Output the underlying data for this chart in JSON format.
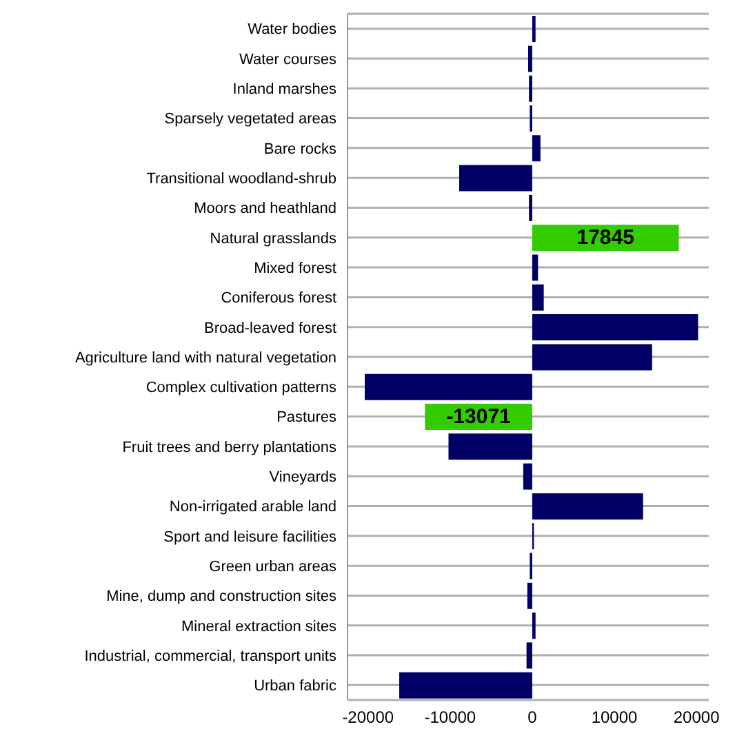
{
  "chart_data": {
    "type": "bar",
    "orientation": "horizontal",
    "categories": [
      "Water bodies",
      "Water courses",
      "Inland marshes",
      "Sparsely vegetated areas",
      "Bare rocks",
      "Transitional woodland-shrub",
      "Moors and heathland",
      "Natural grasslands",
      "Mixed forest",
      "Coniferous forest",
      "Broad-leaved forest",
      "Agriculture land with natural vegetation",
      "Complex cultivation patterns",
      "Pastures",
      "Fruit trees and berry plantations",
      "Vineyards",
      "Non-irrigated arable land",
      "Sport and leisure facilities",
      "Green urban areas",
      "Mine, dump and construction sites",
      "Mineral extraction sites",
      "Industrial, commercial, transport units",
      "Urban fabric"
    ],
    "values": [
      400,
      -500,
      -400,
      -300,
      1000,
      -8900,
      -400,
      17845,
      700,
      1400,
      20200,
      14600,
      -20400,
      -13071,
      -10200,
      -1100,
      13500,
      200,
      -300,
      -600,
      400,
      -700,
      -16200
    ],
    "colors": [
      "#000066",
      "#000066",
      "#000066",
      "#000066",
      "#000066",
      "#000066",
      "#000066",
      "#33cc00",
      "#000066",
      "#000066",
      "#000066",
      "#000066",
      "#000066",
      "#33cc00",
      "#000066",
      "#000066",
      "#000066",
      "#000066",
      "#000066",
      "#000066",
      "#000066",
      "#000066",
      "#000066"
    ],
    "value_labels": [
      null,
      null,
      null,
      null,
      null,
      null,
      null,
      "17845",
      null,
      null,
      null,
      null,
      null,
      "-13071",
      null,
      null,
      null,
      null,
      null,
      null,
      null,
      null,
      null
    ],
    "xlim": [
      -22500,
      21500
    ],
    "xticks": [
      -20000,
      -10000,
      0,
      10000,
      20000
    ],
    "grid": "y"
  }
}
